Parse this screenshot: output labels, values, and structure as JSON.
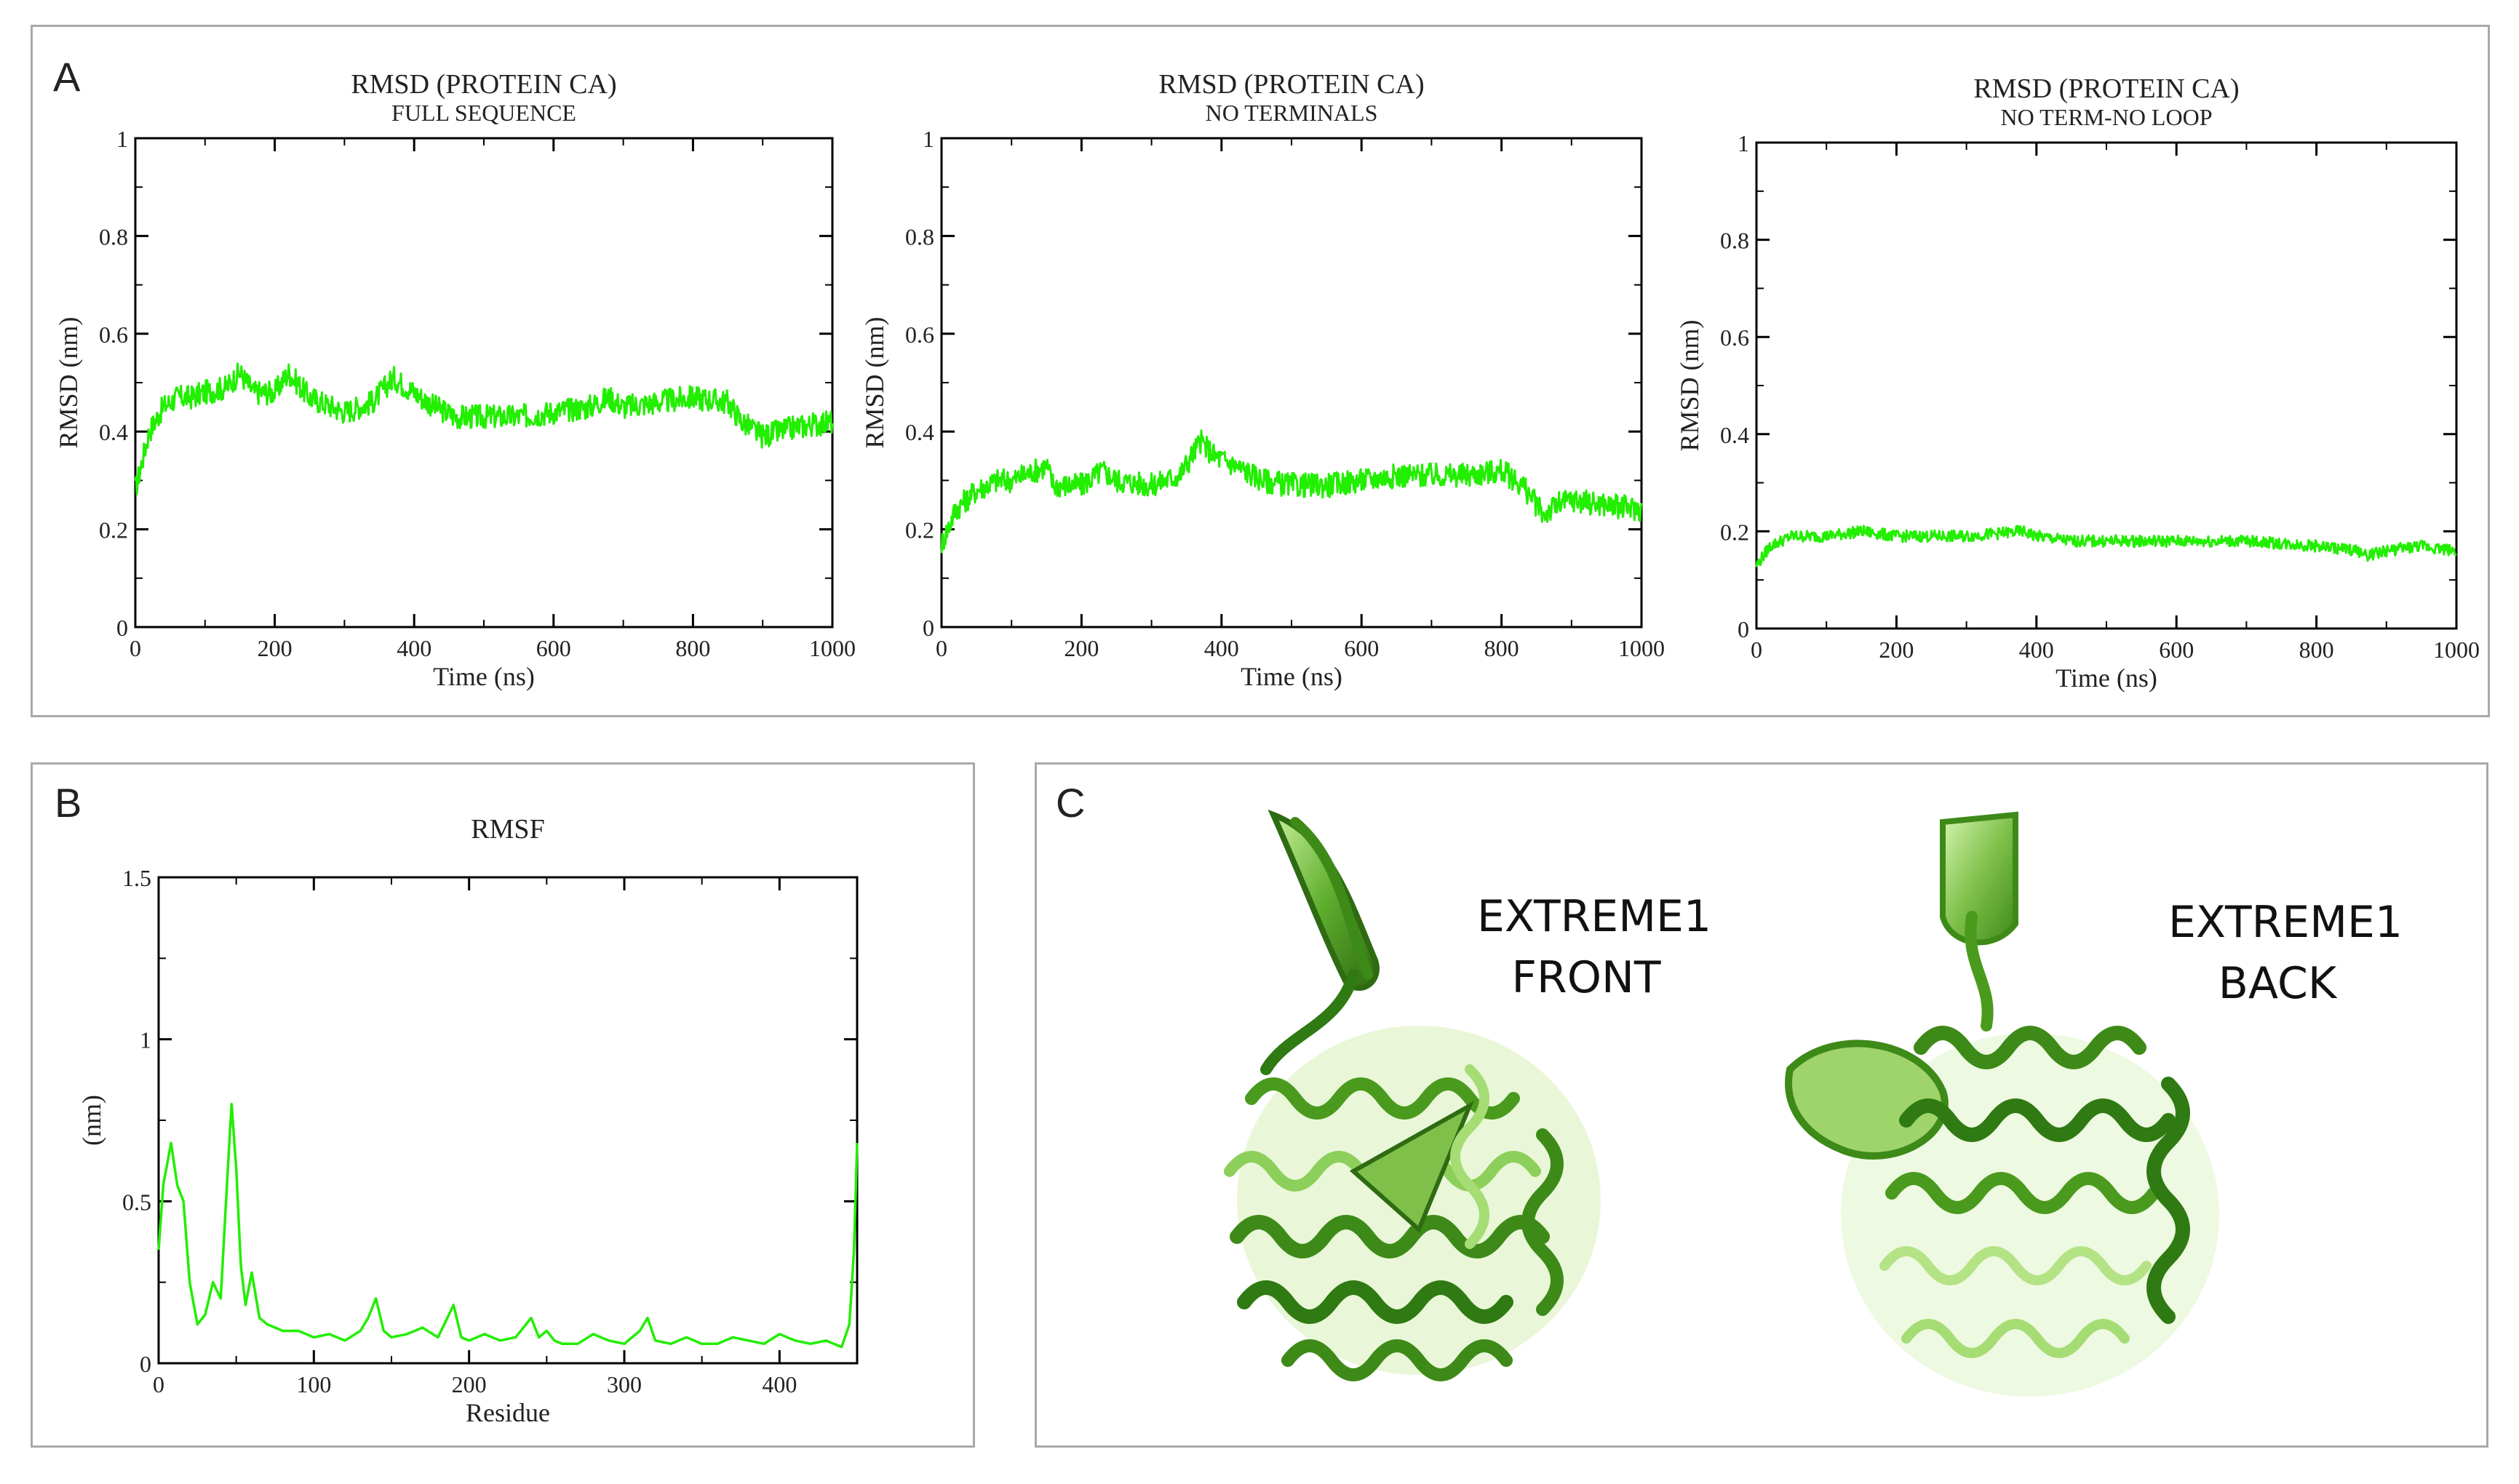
{
  "panels": {
    "a": {
      "letter": "A"
    },
    "b": {
      "letter": "B"
    },
    "c": {
      "letter": "C"
    }
  },
  "colors": {
    "series": "#22ee00",
    "axis": "#000000",
    "frame": "#a9a9a9"
  },
  "chart_data": [
    {
      "id": "rmsd_full",
      "type": "line",
      "title": "RMSD (PROTEIN CA)",
      "subtitle": "FULL SEQUENCE",
      "xlabel": "Time (ns)",
      "ylabel": "RMSD (nm)",
      "xlim": [
        0,
        1000
      ],
      "ylim": [
        0,
        1
      ],
      "xticks": [
        0,
        200,
        400,
        600,
        800,
        1000
      ],
      "yticks": [
        0,
        0.2,
        0.4,
        0.6,
        0.8,
        1
      ],
      "ytick_labels": [
        "0",
        "0.2",
        "0.4",
        "0.6",
        "0.8",
        "1"
      ],
      "x": [
        0,
        20,
        40,
        60,
        80,
        100,
        130,
        150,
        170,
        200,
        220,
        250,
        300,
        340,
        370,
        400,
        430,
        460,
        500,
        550,
        600,
        650,
        680,
        700,
        750,
        800,
        850,
        870,
        900,
        950,
        1000
      ],
      "y": [
        0.28,
        0.4,
        0.45,
        0.47,
        0.47,
        0.48,
        0.49,
        0.52,
        0.48,
        0.48,
        0.52,
        0.47,
        0.44,
        0.46,
        0.51,
        0.48,
        0.45,
        0.43,
        0.43,
        0.43,
        0.44,
        0.45,
        0.47,
        0.45,
        0.46,
        0.47,
        0.46,
        0.42,
        0.39,
        0.41,
        0.42
      ],
      "noise": 0.025
    },
    {
      "id": "rmsd_noterm",
      "type": "line",
      "title": "RMSD (PROTEIN CA)",
      "subtitle": "NO TERMINALS",
      "xlabel": "Time (ns)",
      "ylabel": "RMSD (nm)",
      "xlim": [
        0,
        1000
      ],
      "ylim": [
        0,
        1
      ],
      "xticks": [
        0,
        200,
        400,
        600,
        800,
        1000
      ],
      "yticks": [
        0,
        0.2,
        0.4,
        0.6,
        0.8,
        1
      ],
      "ytick_labels": [
        "0",
        "0.2",
        "0.4",
        "0.6",
        "0.8",
        "1"
      ],
      "x": [
        0,
        20,
        50,
        80,
        100,
        150,
        160,
        200,
        230,
        250,
        300,
        340,
        370,
        390,
        420,
        460,
        500,
        550,
        600,
        650,
        700,
        750,
        800,
        830,
        860,
        880,
        900,
        950,
        1000
      ],
      "y": [
        0.17,
        0.24,
        0.28,
        0.3,
        0.3,
        0.33,
        0.29,
        0.29,
        0.32,
        0.3,
        0.29,
        0.31,
        0.38,
        0.35,
        0.33,
        0.3,
        0.29,
        0.29,
        0.3,
        0.31,
        0.31,
        0.31,
        0.32,
        0.29,
        0.23,
        0.25,
        0.26,
        0.25,
        0.24
      ],
      "noise": 0.025
    },
    {
      "id": "rmsd_noloop",
      "type": "line",
      "title": "RMSD (PROTEIN CA)",
      "subtitle": "NO TERM-NO LOOP",
      "xlabel": "Time (ns)",
      "ylabel": "RMSD (nm)",
      "xlim": [
        0,
        1000
      ],
      "ylim": [
        0,
        1
      ],
      "xticks": [
        0,
        200,
        400,
        600,
        800,
        1000
      ],
      "yticks": [
        0,
        0.2,
        0.4,
        0.6,
        0.8,
        1
      ],
      "ytick_labels": [
        "0",
        "0.2",
        "0.4",
        "0.6",
        "0.8",
        "1"
      ],
      "x": [
        0,
        20,
        50,
        100,
        150,
        200,
        300,
        380,
        400,
        450,
        500,
        600,
        700,
        800,
        860,
        870,
        900,
        950,
        1000
      ],
      "y": [
        0.13,
        0.17,
        0.19,
        0.19,
        0.2,
        0.19,
        0.19,
        0.2,
        0.19,
        0.18,
        0.18,
        0.18,
        0.18,
        0.17,
        0.16,
        0.15,
        0.16,
        0.17,
        0.16
      ],
      "noise": 0.012
    },
    {
      "id": "rmsf",
      "type": "line",
      "title": "RMSF",
      "subtitle": "",
      "xlabel": "Residue",
      "ylabel": "(nm)",
      "xlim": [
        0,
        450
      ],
      "ylim": [
        0,
        1.5
      ],
      "xticks": [
        0,
        100,
        200,
        300,
        400
      ],
      "yticks": [
        0,
        0.5,
        1,
        1.5
      ],
      "ytick_labels": [
        "0",
        "0.5",
        "1",
        "1.5"
      ],
      "x": [
        0,
        3,
        8,
        12,
        16,
        20,
        25,
        30,
        35,
        40,
        44,
        47,
        50,
        53,
        56,
        60,
        65,
        70,
        80,
        90,
        100,
        110,
        120,
        130,
        135,
        140,
        145,
        150,
        160,
        170,
        180,
        190,
        195,
        200,
        210,
        220,
        230,
        240,
        245,
        250,
        255,
        260,
        270,
        280,
        290,
        300,
        310,
        315,
        320,
        330,
        340,
        350,
        360,
        370,
        380,
        390,
        400,
        410,
        420,
        430,
        440,
        445,
        448,
        450
      ],
      "y": [
        0.35,
        0.55,
        0.68,
        0.55,
        0.5,
        0.25,
        0.12,
        0.15,
        0.25,
        0.2,
        0.55,
        0.8,
        0.6,
        0.3,
        0.18,
        0.28,
        0.14,
        0.12,
        0.1,
        0.1,
        0.08,
        0.09,
        0.07,
        0.1,
        0.14,
        0.2,
        0.1,
        0.08,
        0.09,
        0.11,
        0.08,
        0.18,
        0.08,
        0.07,
        0.09,
        0.07,
        0.08,
        0.14,
        0.08,
        0.1,
        0.07,
        0.06,
        0.06,
        0.09,
        0.07,
        0.06,
        0.1,
        0.14,
        0.07,
        0.06,
        0.08,
        0.06,
        0.06,
        0.08,
        0.07,
        0.06,
        0.09,
        0.07,
        0.06,
        0.07,
        0.05,
        0.12,
        0.35,
        0.68
      ]
    }
  ],
  "structures": {
    "front_label_line1": "EXTREME1",
    "front_label_line2": "FRONT",
    "back_label_line1": "EXTREME1",
    "back_label_line2": "BACK"
  }
}
